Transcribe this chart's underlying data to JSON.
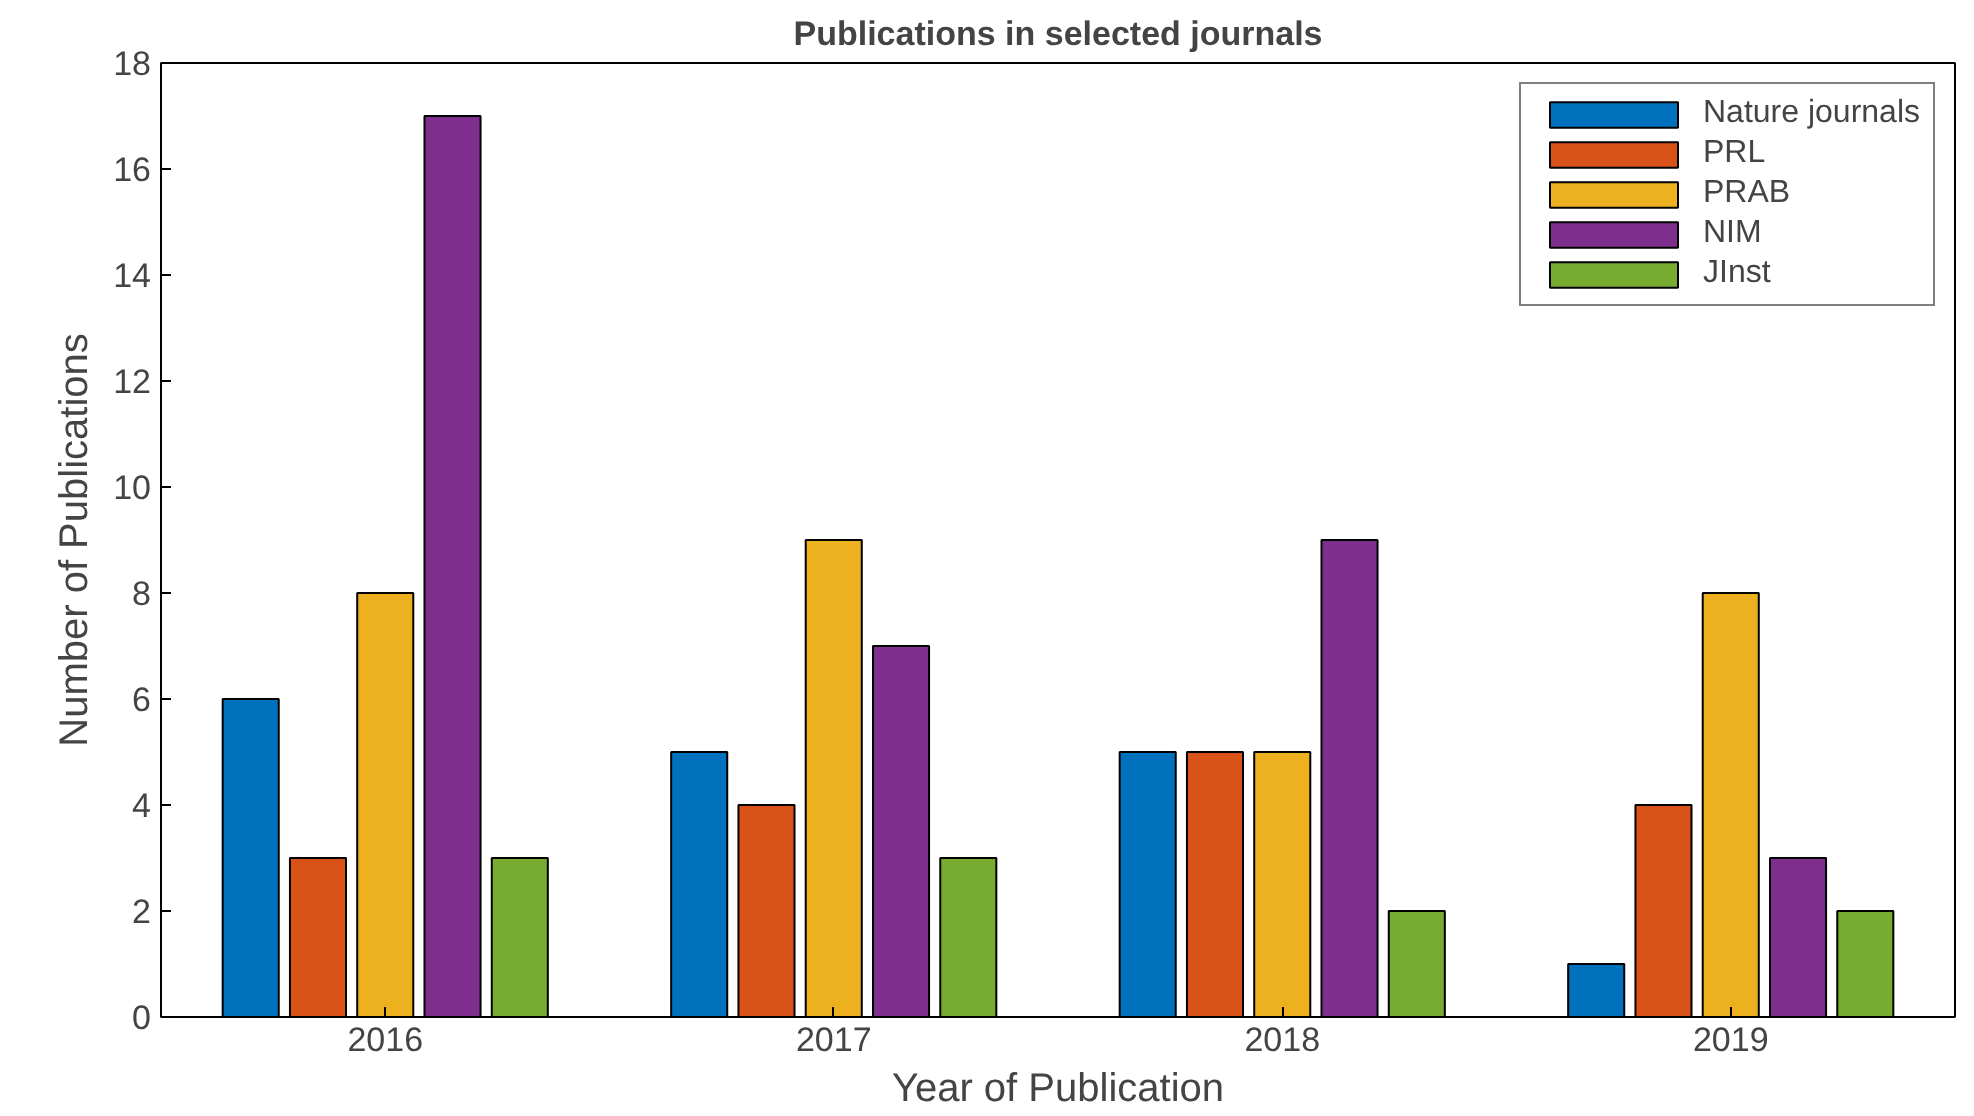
{
  "chart_data": {
    "type": "bar",
    "title": "Publications in selected journals",
    "xlabel": "Year of Publication",
    "ylabel": "Number of Publications",
    "categories": [
      "2016",
      "2017",
      "2018",
      "2019"
    ],
    "series": [
      {
        "name": "Nature journals",
        "color": "#0072bd",
        "values": [
          6,
          5,
          5,
          1
        ]
      },
      {
        "name": "PRL",
        "color": "#d95319",
        "values": [
          3,
          4,
          5,
          4
        ]
      },
      {
        "name": "PRAB",
        "color": "#edb120",
        "values": [
          8,
          9,
          5,
          8
        ]
      },
      {
        "name": "NIM",
        "color": "#7e2f8e",
        "values": [
          17,
          7,
          9,
          3
        ]
      },
      {
        "name": "JInst",
        "color": "#77ac30",
        "values": [
          3,
          3,
          2,
          2
        ]
      }
    ],
    "ylim": [
      0,
      18
    ],
    "yticks": [
      0,
      2,
      4,
      6,
      8,
      10,
      12,
      14,
      16,
      18
    ],
    "grid": false,
    "legend": "top right"
  }
}
